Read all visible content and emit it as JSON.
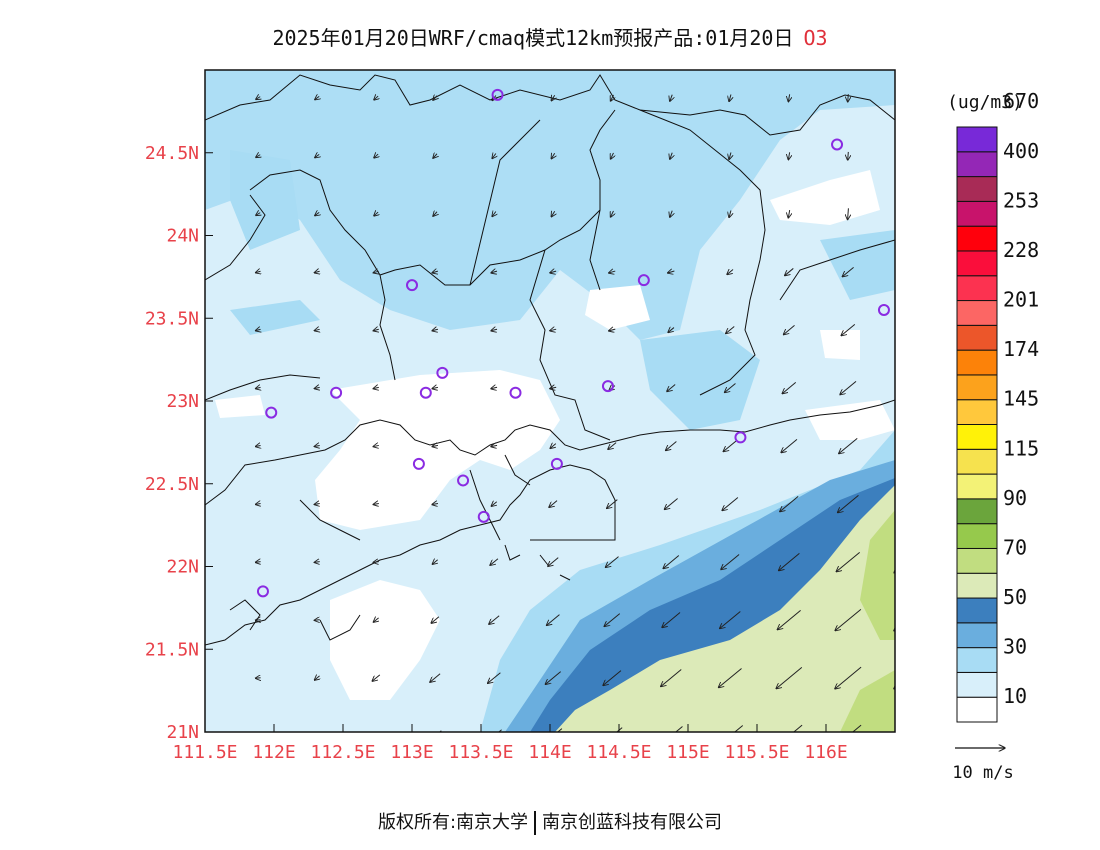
{
  "header": {
    "title": "2025年01月20日WRF/cmaq模式12km预报产品:01月20日",
    "product": "O3"
  },
  "map": {
    "lat_labels": [
      "24.5N",
      "24N",
      "23.5N",
      "23N",
      "22.5N",
      "22N",
      "21.5N",
      "21N"
    ],
    "lon_labels": [
      "111.5E",
      "112E",
      "112.5E",
      "113E",
      "113.5E",
      "114E",
      "114.5E",
      "115E",
      "115.5E",
      "116E"
    ],
    "label_color": "#e8424a",
    "extent": {
      "lon": [
        111.5,
        116.5
      ],
      "lat": [
        21.0,
        25.0
      ]
    },
    "stations": [
      [
        113.62,
        24.85
      ],
      [
        116.08,
        24.55
      ],
      [
        114.68,
        23.73
      ],
      [
        116.42,
        23.55
      ],
      [
        113.0,
        23.7
      ],
      [
        112.45,
        23.05
      ],
      [
        113.22,
        23.17
      ],
      [
        113.1,
        23.05
      ],
      [
        113.75,
        23.05
      ],
      [
        114.42,
        23.09
      ],
      [
        111.98,
        22.93
      ],
      [
        115.38,
        22.78
      ],
      [
        113.05,
        22.62
      ],
      [
        113.37,
        22.52
      ],
      [
        114.05,
        22.62
      ],
      [
        113.52,
        22.3
      ],
      [
        111.92,
        21.85
      ]
    ]
  },
  "legend": {
    "unit": "(ug/m3)",
    "colors": [
      "#ffffff",
      "#d8effa",
      "#a8dcf4",
      "#6aaede",
      "#3c7fbe",
      "#dceab8",
      "#c1dd80",
      "#96c94c",
      "#6ba53c",
      "#f3f276",
      "#f6e24e",
      "#fff208",
      "#ffc83c",
      "#fca21c",
      "#fc8209",
      "#ec562a",
      "#fc6664",
      "#fc3250",
      "#fa0e3b",
      "#ff000c",
      "#c8136b",
      "#a82b56",
      "#9427b6",
      "#7829d8"
    ],
    "labels": [
      "10",
      "30",
      "50",
      "70",
      "90",
      "115",
      "145",
      "174",
      "201",
      "228",
      "253",
      "400",
      "670"
    ]
  },
  "wind": {
    "scale_label": "10 m/s"
  },
  "footer": {
    "left": "版权所有:南京大学",
    "right": "南京创蓝科技有限公司"
  }
}
